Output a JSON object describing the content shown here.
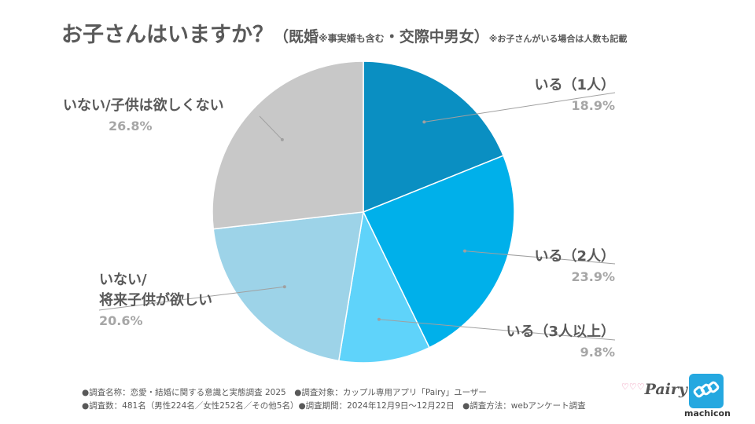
{
  "title": {
    "main": "お子さんはいますか？",
    "sub_open": "（既婚",
    "sub_small": "※事実婚も含む",
    "sub_rest": "・交際中男女）",
    "note": "※お子さんがいる場合は人数も記載"
  },
  "chart_data": {
    "type": "pie",
    "slices": [
      {
        "label": "いる（1人）",
        "value": 18.9,
        "value_label": "18.9%",
        "color": "#0a8fc2"
      },
      {
        "label": "いる（2人）",
        "value": 23.9,
        "value_label": "23.9%",
        "color": "#00b0ea"
      },
      {
        "label": "いる（3人以上）",
        "value": 9.8,
        "value_label": "9.8%",
        "color": "#5fd3fa"
      },
      {
        "label_line1": "いない/",
        "label_line2": "将来子供が欲しい",
        "value": 20.6,
        "value_label": "20.6%",
        "color": "#9dd3e8"
      },
      {
        "label": "いない/子供は欲しくない",
        "value": 26.8,
        "value_label": "26.8%",
        "color": "#c8c8c8"
      }
    ]
  },
  "footer": {
    "line1": "●調査名称：恋愛・結婚に関する意識と実態調査 2025　●調査対象：カップル専用アプリ「Pairy」ユーザー",
    "line2": "●調査数：481名（男性224名／女性252名／その他5名）●調査期間：2024年12月9日〜12月22日　●調査方法：webアンケート調査"
  },
  "logos": {
    "pairy": "Pairy",
    "machicon": "machicon"
  }
}
